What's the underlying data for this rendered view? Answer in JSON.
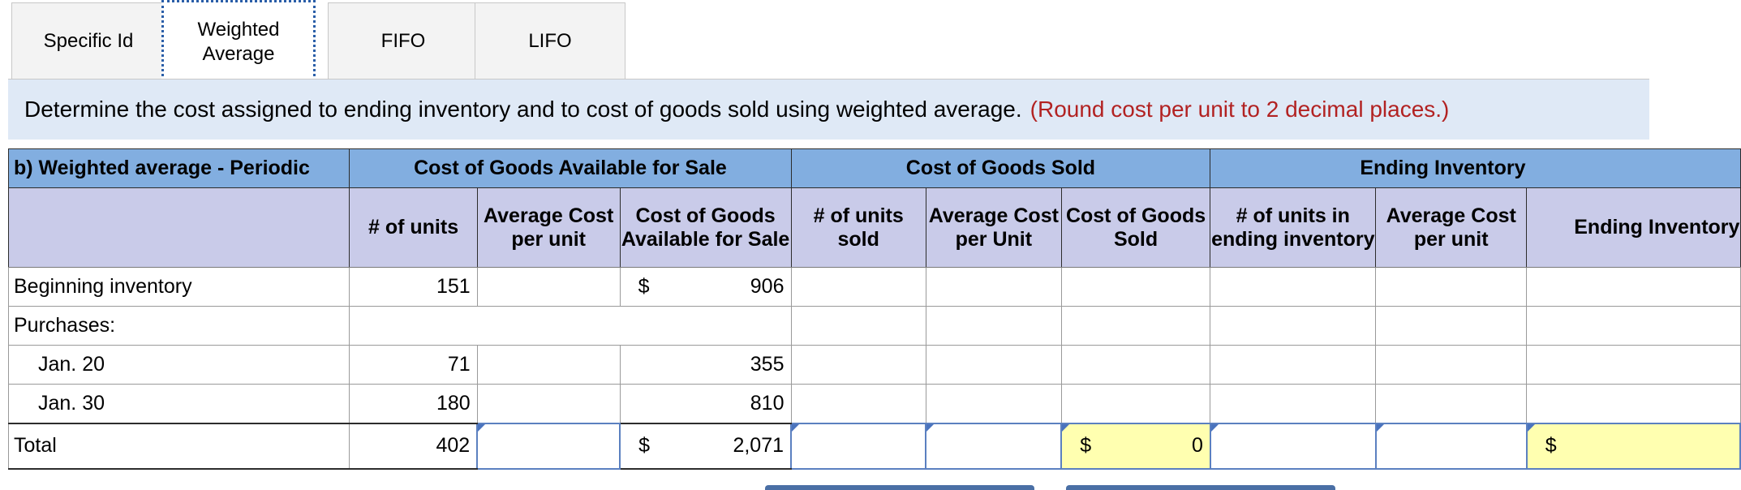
{
  "tabs": [
    {
      "label": "Specific Id",
      "active": false
    },
    {
      "label": "Weighted Average",
      "active": true
    },
    {
      "label": "FIFO",
      "active": false
    },
    {
      "label": "LIFO",
      "active": false
    }
  ],
  "instruction": {
    "text": "Determine the cost assigned to ending inventory and to cost of goods sold using weighted average.",
    "note": "(Round cost per unit to 2 decimal places.)"
  },
  "table": {
    "title": "b) Weighted average - Periodic",
    "groups": {
      "available": "Cost of Goods Available for Sale",
      "sold": "Cost of Goods Sold",
      "ending": "Ending Inventory"
    },
    "columns": {
      "units": "# of units",
      "avg_cost": "Average Cost per unit",
      "cgas": "Cost of Goods Available for Sale",
      "units_sold": "# of units sold",
      "avg_cost_unit": "Average Cost per Unit",
      "cogs": "Cost of Goods Sold",
      "units_ending": "# of units in ending inventory",
      "avg_cost_end": "Average Cost per unit",
      "ending_inv": "Ending Inventory"
    },
    "rows": {
      "beginning": {
        "label": "Beginning inventory",
        "units": "151",
        "currency": "$",
        "cost": "906"
      },
      "purchases": {
        "label": "Purchases:"
      },
      "jan20": {
        "label": "Jan. 20",
        "units": "71",
        "cost": "355"
      },
      "jan30": {
        "label": "Jan. 30",
        "units": "180",
        "cost": "810"
      },
      "total": {
        "label": "Total",
        "units": "402",
        "currency": "$",
        "cost": "2,071",
        "cogs_currency": "$",
        "cogs_value": "0",
        "ending_currency": "$"
      }
    }
  },
  "colors": {
    "tab_active_border": "#2a5ea8",
    "instruction_bg": "#dfe9f6",
    "note_color": "#b22222",
    "group_header_bg": "#82aee0",
    "column_header_bg": "#c9cbe9",
    "input_border": "#5b80c0",
    "highlight_cell_bg": "#ffffb0"
  }
}
